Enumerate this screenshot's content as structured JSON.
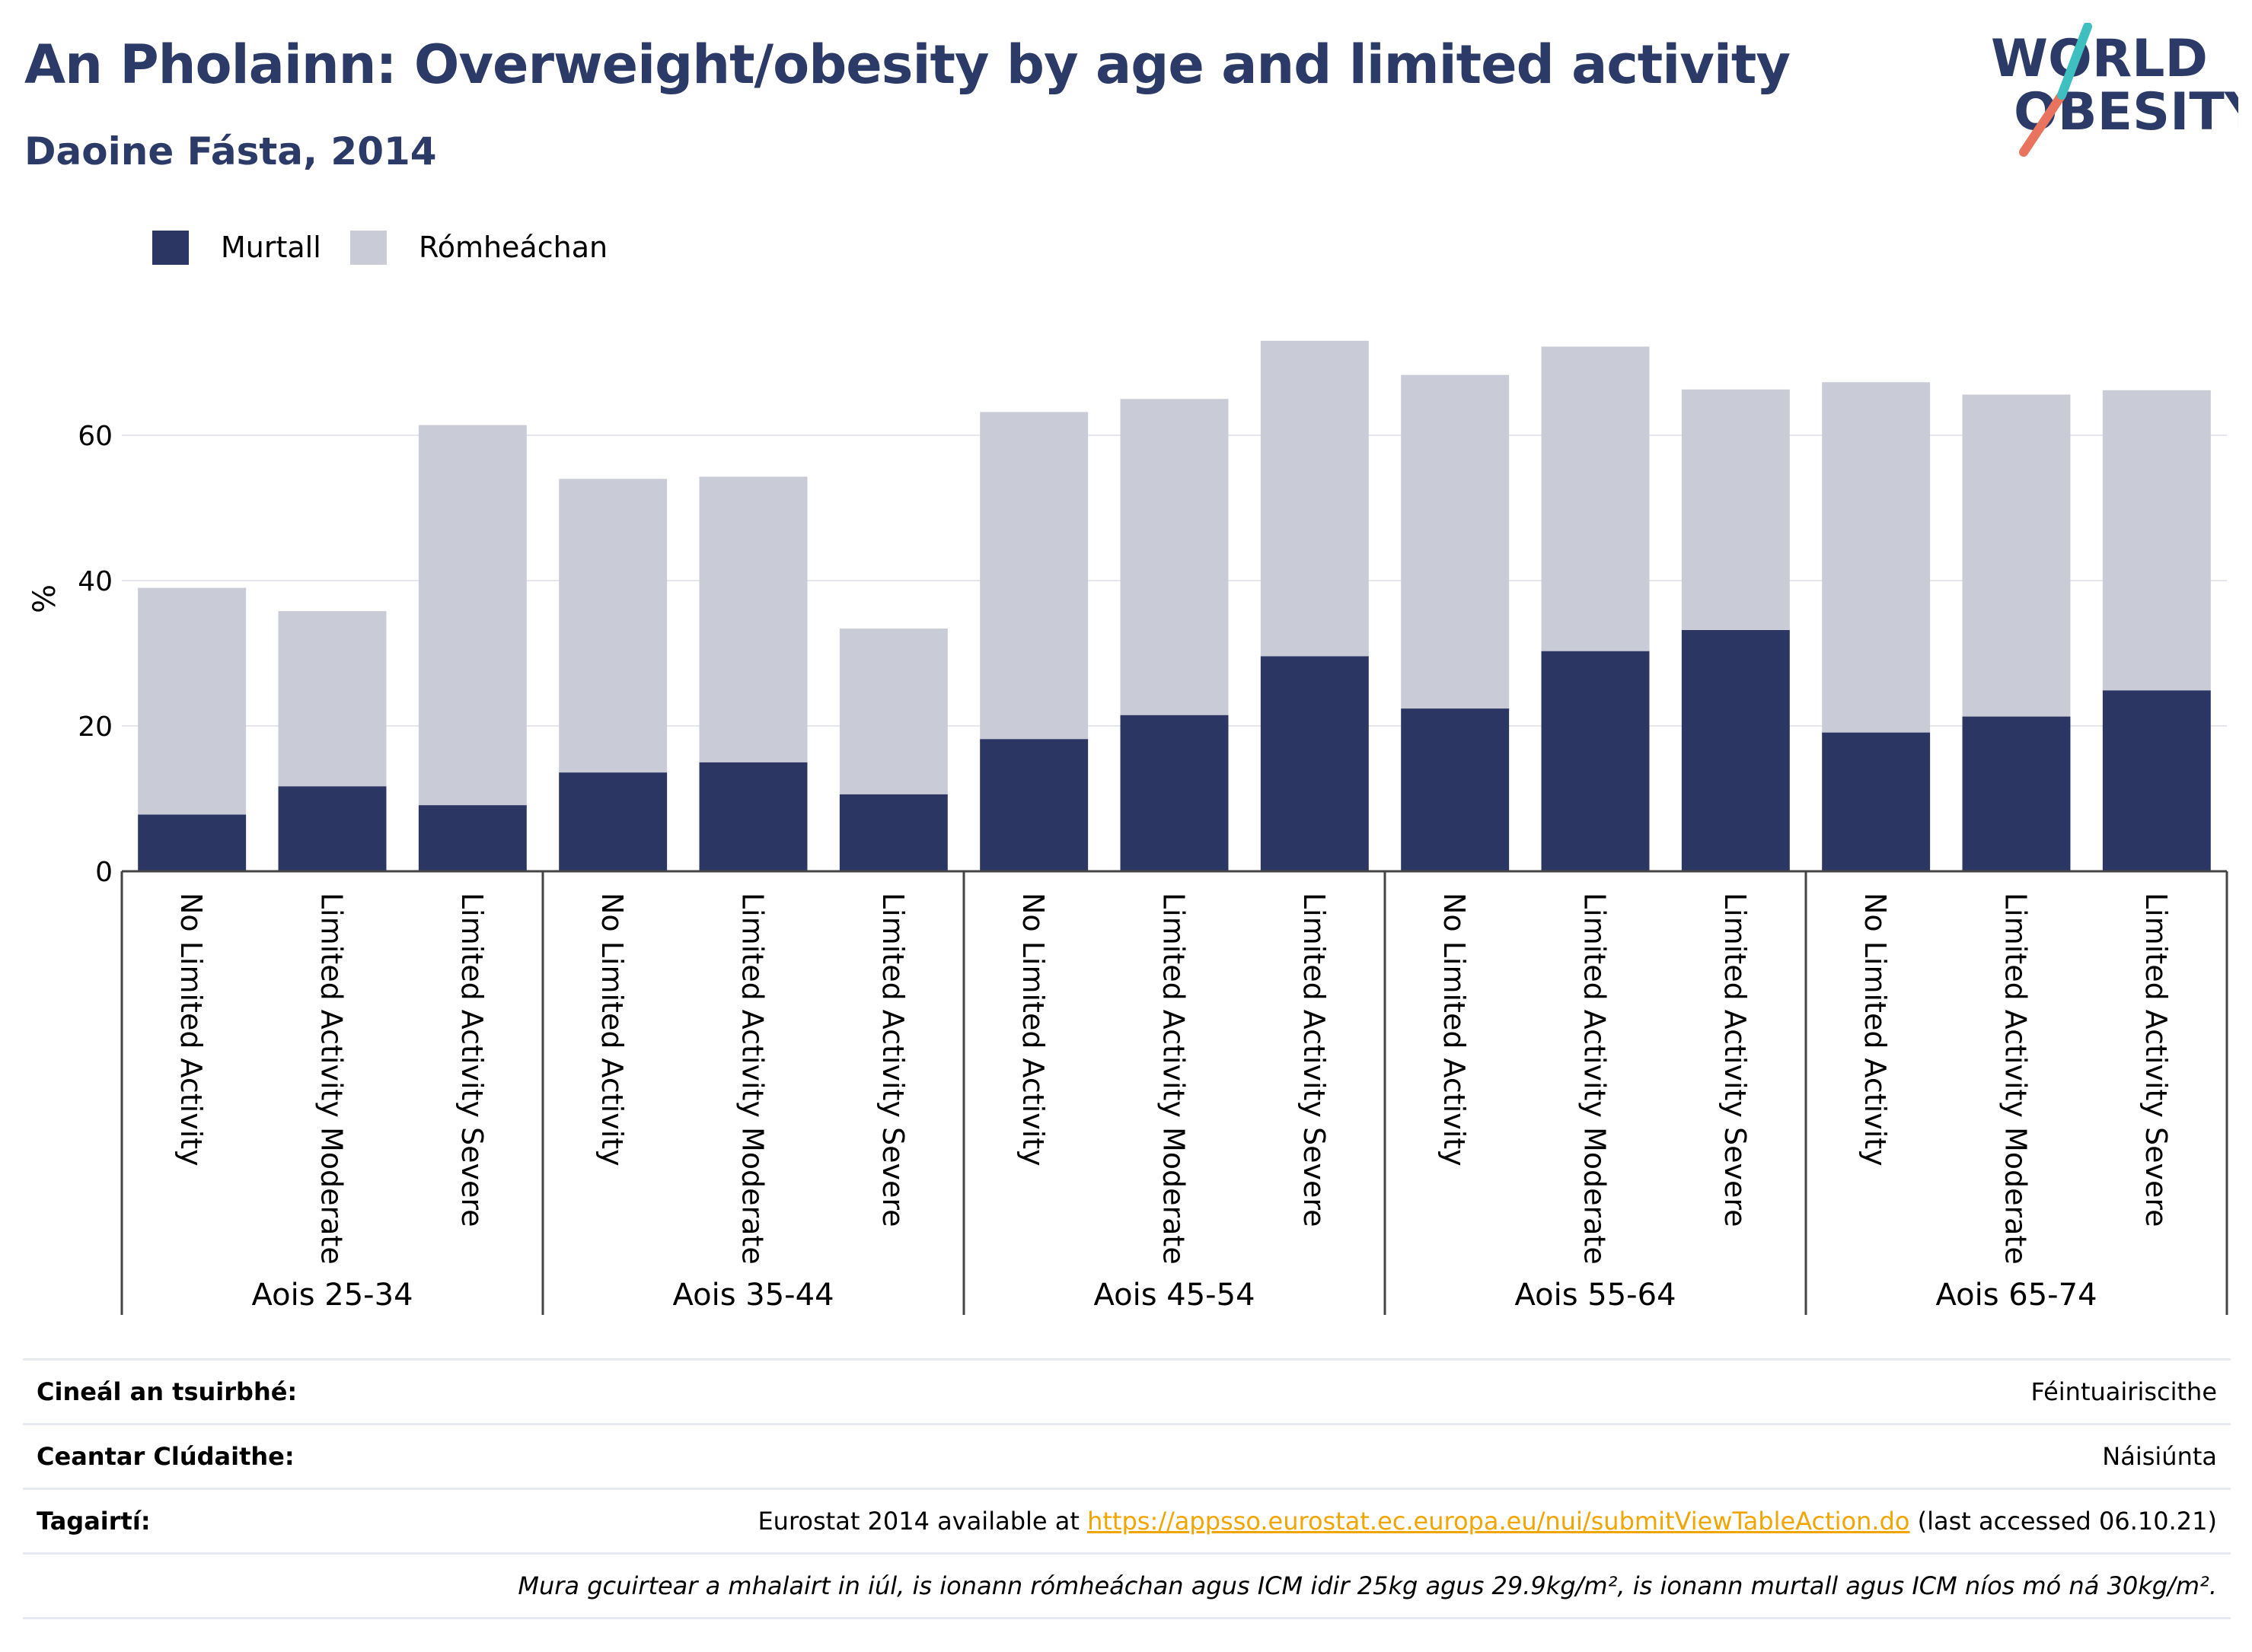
{
  "header": {
    "title": "An Pholainn: Overweight/obesity by age and limited activity",
    "subtitle": "Daoine Fásta, 2014"
  },
  "logo": {
    "line1": "WORLD",
    "line2": "OBESITY"
  },
  "colors": {
    "obese": "#2b3663",
    "overweight": "#c9cbd7",
    "title": "#2b3a67",
    "grid": "#e6e7ee",
    "link": "#f0a500"
  },
  "chart_data": {
    "type": "bar",
    "stacked": true,
    "ylabel": "%",
    "ylim": [
      0,
      75
    ],
    "yticks": [
      0,
      20,
      40,
      60
    ],
    "grid": true,
    "legend_position": "top-left",
    "groups": [
      "Aois 25-34",
      "Aois 35-44",
      "Aois 45-54",
      "Aois 55-64",
      "Aois 65-74"
    ],
    "subcategories": [
      "No Limited Activity",
      "Limited Activity Moderate",
      "Limited Activity Severe"
    ],
    "series": [
      {
        "name": "Murtall",
        "values": [
          7.8,
          11.7,
          9.1,
          13.6,
          15.0,
          10.6,
          18.2,
          21.5,
          29.6,
          22.4,
          30.3,
          33.2,
          19.1,
          21.3,
          24.9
        ]
      },
      {
        "name": "Rómheáchan",
        "values": [
          31.2,
          24.1,
          52.3,
          40.4,
          39.3,
          22.8,
          45.0,
          43.5,
          43.4,
          45.9,
          41.9,
          33.1,
          48.2,
          44.3,
          41.3
        ]
      }
    ]
  },
  "meta": {
    "rows": [
      {
        "key": "Cineál an tsuirbhé:",
        "value": "Féintuairiscithe"
      },
      {
        "key": "Ceantar Clúdaithe:",
        "value": "Náisiúnta"
      }
    ],
    "ref_key": "Tagairtí:",
    "ref_prefix": "Eurostat 2014 available at ",
    "ref_link": "https://appsso.eurostat.ec.europa.eu/nui/submitViewTableAction.do",
    "ref_suffix": " (last accessed 06.10.21)",
    "note": "Mura gcuirtear a mhalairt in iúl, is ionann rómheáchan agus ICM idir 25kg agus 29.9kg/m², is ionann murtall agus ICM níos mó ná 30kg/m²."
  }
}
